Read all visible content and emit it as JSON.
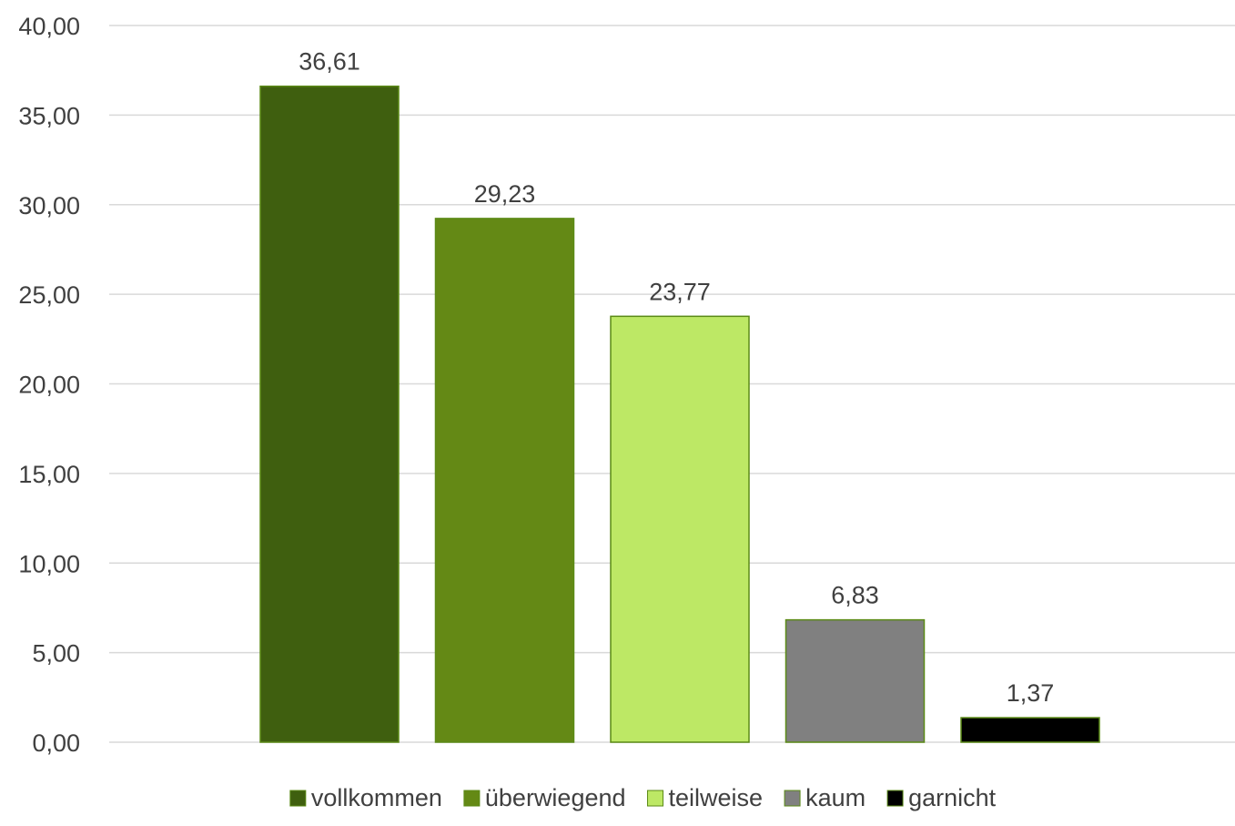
{
  "chart_data": {
    "type": "bar",
    "title": "",
    "xlabel": "",
    "ylabel": "",
    "ylim": [
      0,
      40
    ],
    "yticks": [
      "0,00",
      "5,00",
      "10,00",
      "15,00",
      "20,00",
      "25,00",
      "30,00",
      "35,00",
      "40,00"
    ],
    "grid": true,
    "legend_position": "bottom",
    "categories": [
      "vollkommen",
      "überwiegend",
      "teilweise",
      "kaum",
      "garnicht"
    ],
    "values": [
      36.61,
      29.23,
      23.77,
      6.83,
      1.37
    ],
    "value_labels": [
      "36,61",
      "29,23",
      "23,77",
      "6,83",
      "1,37"
    ],
    "colors": [
      "#3f5f0f",
      "#648915",
      "#bde865",
      "#808080",
      "#000000"
    ],
    "border_color": "#5b8a16"
  }
}
